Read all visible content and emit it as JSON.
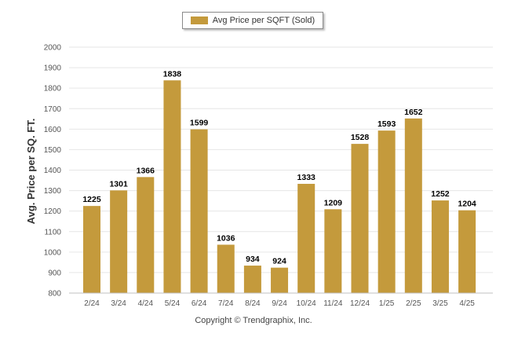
{
  "legend": {
    "label": "Avg Price per SQFT (Sold)"
  },
  "footer": {
    "copyright": "Copyright © Trendgraphix, Inc."
  },
  "colors": {
    "bar": "#c49a3c",
    "grid": "#e6e6e6",
    "axis": "#c0c0c0",
    "tick_text": "#555555",
    "label_text": "#000000"
  },
  "chart_data": {
    "type": "bar",
    "categories": [
      "2/24",
      "3/24",
      "4/24",
      "5/24",
      "6/24",
      "7/24",
      "8/24",
      "9/24",
      "10/24",
      "11/24",
      "12/24",
      "1/25",
      "2/25",
      "3/25",
      "4/25"
    ],
    "series": [
      {
        "name": "Avg Price per SQFT (Sold)",
        "values": [
          1225,
          1301,
          1366,
          1838,
          1599,
          1036,
          934,
          924,
          1333,
          1209,
          1528,
          1593,
          1652,
          1252,
          1204
        ]
      }
    ],
    "ylabel": "Avg. Price per SQ. FT.",
    "ylim": [
      800,
      2000
    ],
    "yticks": [
      800,
      900,
      1000,
      1100,
      1200,
      1300,
      1400,
      1500,
      1600,
      1700,
      1800,
      1900,
      2000
    ],
    "grid": true,
    "legend_position": "top-center"
  }
}
